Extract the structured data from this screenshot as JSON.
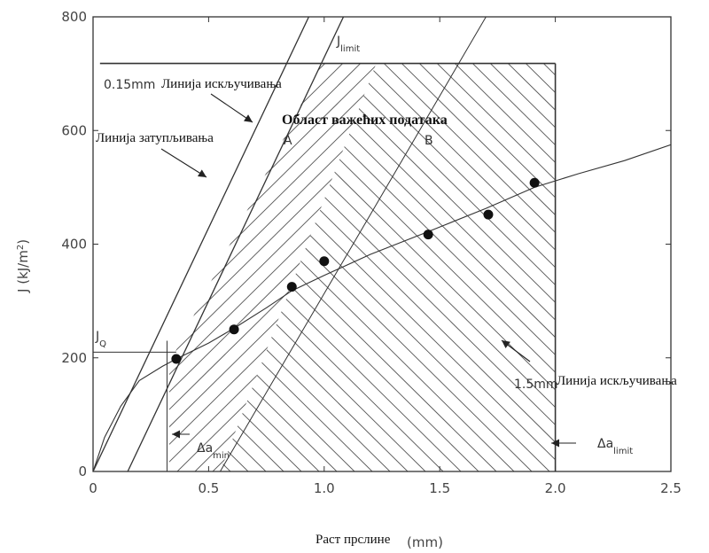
{
  "chart_data": {
    "type": "scatter",
    "xlabel": "Раст прслине",
    "xlabel_unit": "(mm)",
    "ylabel": "J (kJ/m",
    "ylabel_sup": "2",
    "ylabel_close": ")",
    "xlim": [
      0,
      2.5
    ],
    "ylim": [
      0,
      800
    ],
    "x_ticks": [
      "0",
      "0.5",
      "1.0",
      "1.5",
      "2.0",
      "2.5"
    ],
    "y_ticks": [
      "0",
      "200",
      "400",
      "600",
      "800"
    ],
    "grid": false,
    "series": [
      {
        "name": "",
        "x": [
          0.36,
          0.61,
          0.86,
          1.0,
          1.45,
          1.71,
          1.91
        ],
        "y": [
          198,
          250,
          325,
          370,
          417,
          452,
          508
        ]
      }
    ],
    "annotations": {
      "title": "Област важећих података",
      "blunting_line": "Линија затупљивања",
      "excl_015_value": "0.15mm",
      "excl_015_text": "Линија искључивања",
      "excl_15_value": "1.5mm",
      "excl_15_text": "Линија искључивања",
      "region_a": "A",
      "region_b": "B",
      "j_limit_base": "J",
      "j_limit_sub": "limit",
      "j_q_base": "J",
      "j_q_sub": "Q",
      "da_min_base": "Δa",
      "da_min_sub": "min",
      "da_limit_base": "Δa",
      "da_limit_sub": "limit"
    }
  }
}
